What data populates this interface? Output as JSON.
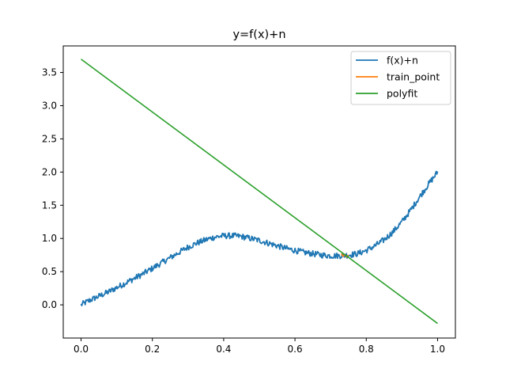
{
  "chart_data": {
    "type": "line",
    "title": "y=f(x)+n",
    "xlabel": "",
    "ylabel": "",
    "xlim": [
      -0.05,
      1.05
    ],
    "ylim": [
      -0.5,
      3.9
    ],
    "x_ticks": [
      0.0,
      0.2,
      0.4,
      0.6,
      0.8,
      1.0
    ],
    "x_tick_labels": [
      "0.0",
      "0.2",
      "0.4",
      "0.6",
      "0.8",
      "1.0"
    ],
    "y_ticks": [
      0.0,
      0.5,
      1.0,
      1.5,
      2.0,
      2.5,
      3.0,
      3.5
    ],
    "y_tick_labels": [
      "0.0",
      "0.5",
      "1.0",
      "1.5",
      "2.0",
      "2.5",
      "3.0",
      "3.5"
    ],
    "grid": false,
    "legend_position": "top-right",
    "series": [
      {
        "name": "f(x)+n",
        "color": "#1f77b4",
        "x": [
          0.0,
          0.025,
          0.05,
          0.075,
          0.1,
          0.125,
          0.15,
          0.175,
          0.2,
          0.225,
          0.25,
          0.275,
          0.3,
          0.325,
          0.35,
          0.375,
          0.4,
          0.425,
          0.45,
          0.475,
          0.5,
          0.525,
          0.55,
          0.575,
          0.6,
          0.625,
          0.65,
          0.675,
          0.7,
          0.725,
          0.75,
          0.775,
          0.8,
          0.825,
          0.85,
          0.875,
          0.9,
          0.925,
          0.95,
          0.975,
          1.0
        ],
        "y": [
          0.0,
          0.07,
          0.13,
          0.19,
          0.26,
          0.33,
          0.4,
          0.47,
          0.55,
          0.63,
          0.71,
          0.79,
          0.87,
          0.93,
          0.98,
          1.02,
          1.04,
          1.04,
          1.03,
          1.0,
          0.97,
          0.93,
          0.89,
          0.85,
          0.82,
          0.79,
          0.77,
          0.75,
          0.74,
          0.74,
          0.75,
          0.77,
          0.82,
          0.89,
          0.98,
          1.1,
          1.25,
          1.43,
          1.63,
          1.82,
          2.0
        ]
      },
      {
        "name": "train_point",
        "color": "#ff7f0e",
        "x": [
          0.73,
          0.735,
          0.74,
          0.745,
          0.75
        ],
        "y": [
          0.77,
          0.73,
          0.76,
          0.72,
          0.75
        ]
      },
      {
        "name": "polyfit",
        "color": "#2ca02c",
        "x": [
          0.0,
          1.0
        ],
        "y": [
          3.7,
          -0.28
        ]
      }
    ]
  }
}
